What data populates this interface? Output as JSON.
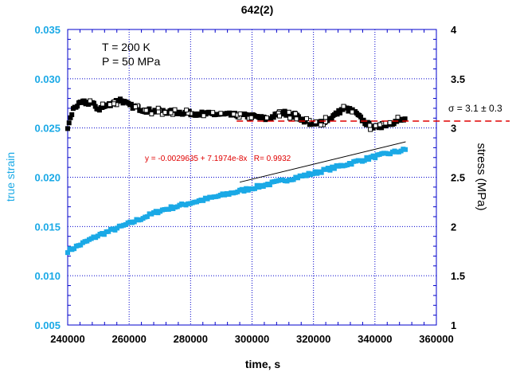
{
  "chart_data": {
    "type": "scatter",
    "title": "642(2)",
    "xlabel": "time, s",
    "ylabel": "true strain",
    "y2label": "stress (MPa)",
    "xlim": [
      240000,
      360000
    ],
    "ylim": [
      0.005,
      0.035
    ],
    "y2lim": [
      1,
      4
    ],
    "grid": true,
    "xticks": [
      "240000",
      "260000",
      "280000",
      "300000",
      "320000",
      "340000",
      "360000"
    ],
    "yticks": [
      "0.005",
      "0.010",
      "0.015",
      "0.020",
      "0.025",
      "0.030",
      "0.035"
    ],
    "y2ticks": [
      "1",
      "1.5",
      "2",
      "2.5",
      "3",
      "3.5",
      "4"
    ],
    "annotations": {
      "conditions": [
        "T = 200 K",
        "P = 50 MPa"
      ],
      "fit_label": "y = -0.0029635 + 7.1974e-8x   R= 0.9932",
      "sigma_label": "σ = 3.1 ± 0.3",
      "sigma_value": 3.07
    },
    "fit_line": {
      "x": [
        296000,
        350000
      ],
      "y": [
        0.0195,
        0.0236
      ]
    },
    "series": [
      {
        "name": "true strain",
        "axis": "left",
        "color": "#1aa9e6",
        "marker": "filled-square",
        "x": [
          240000,
          250000,
          260000,
          270000,
          280000,
          300000,
          320000,
          340000,
          350000
        ],
        "y": [
          0.0125,
          0.0141,
          0.0153,
          0.0166,
          0.0174,
          0.0189,
          0.0204,
          0.0221,
          0.0228
        ]
      },
      {
        "name": "stress",
        "axis": "right",
        "color": "#000000",
        "marker": "open-square",
        "x": [
          240000,
          242000,
          245000,
          248000,
          250000,
          253000,
          257000,
          260000,
          265000,
          280000,
          295000,
          300000,
          305000,
          310000,
          315000,
          320000,
          325000,
          330000,
          333000,
          337000,
          340000,
          345000,
          350000
        ],
        "y": [
          3.0,
          3.21,
          3.26,
          3.25,
          3.19,
          3.23,
          3.29,
          3.23,
          3.18,
          3.15,
          3.13,
          3.12,
          3.09,
          3.16,
          3.11,
          3.03,
          3.09,
          3.2,
          3.17,
          3.05,
          3.0,
          3.05,
          3.09
        ]
      }
    ]
  }
}
